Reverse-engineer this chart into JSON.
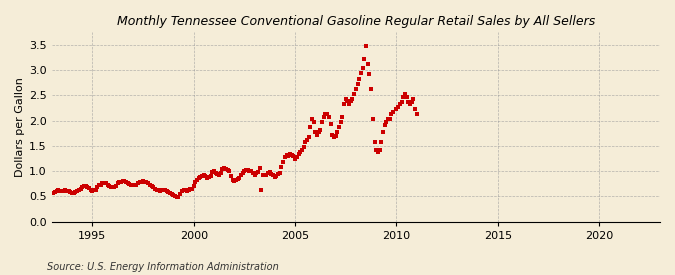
{
  "title": "Monthly Tennessee Conventional Gasoline Regular Retail Sales by All Sellers",
  "ylabel": "Dollars per Gallon",
  "source": "Source: U.S. Energy Information Administration",
  "background_color": "#f5edd8",
  "plot_bg_color": "#f5edd8",
  "marker_color": "#cc0000",
  "marker_size": 5,
  "xlim": [
    1993.0,
    2023.0
  ],
  "ylim": [
    0.0,
    3.75
  ],
  "yticks": [
    0.0,
    0.5,
    1.0,
    1.5,
    2.0,
    2.5,
    3.0,
    3.5
  ],
  "xticks": [
    1995,
    2000,
    2005,
    2010,
    2015,
    2020
  ],
  "data_xy": [
    [
      1993.08,
      0.57
    ],
    [
      1993.17,
      0.59
    ],
    [
      1993.25,
      0.61
    ],
    [
      1993.33,
      0.62
    ],
    [
      1993.42,
      0.61
    ],
    [
      1993.5,
      0.6
    ],
    [
      1993.58,
      0.61
    ],
    [
      1993.67,
      0.62
    ],
    [
      1993.75,
      0.6
    ],
    [
      1993.83,
      0.61
    ],
    [
      1993.92,
      0.59
    ],
    [
      1994.0,
      0.57
    ],
    [
      1994.08,
      0.57
    ],
    [
      1994.17,
      0.58
    ],
    [
      1994.25,
      0.6
    ],
    [
      1994.33,
      0.63
    ],
    [
      1994.42,
      0.64
    ],
    [
      1994.5,
      0.68
    ],
    [
      1994.58,
      0.7
    ],
    [
      1994.67,
      0.7
    ],
    [
      1994.75,
      0.68
    ],
    [
      1994.83,
      0.66
    ],
    [
      1994.92,
      0.63
    ],
    [
      1995.0,
      0.61
    ],
    [
      1995.08,
      0.62
    ],
    [
      1995.17,
      0.63
    ],
    [
      1995.25,
      0.68
    ],
    [
      1995.33,
      0.73
    ],
    [
      1995.42,
      0.73
    ],
    [
      1995.5,
      0.76
    ],
    [
      1995.58,
      0.77
    ],
    [
      1995.67,
      0.76
    ],
    [
      1995.75,
      0.73
    ],
    [
      1995.83,
      0.71
    ],
    [
      1995.92,
      0.69
    ],
    [
      1996.0,
      0.68
    ],
    [
      1996.08,
      0.68
    ],
    [
      1996.17,
      0.7
    ],
    [
      1996.25,
      0.76
    ],
    [
      1996.33,
      0.79
    ],
    [
      1996.42,
      0.79
    ],
    [
      1996.5,
      0.8
    ],
    [
      1996.58,
      0.8
    ],
    [
      1996.67,
      0.78
    ],
    [
      1996.75,
      0.76
    ],
    [
      1996.83,
      0.74
    ],
    [
      1996.92,
      0.73
    ],
    [
      1997.0,
      0.72
    ],
    [
      1997.08,
      0.72
    ],
    [
      1997.17,
      0.73
    ],
    [
      1997.25,
      0.76
    ],
    [
      1997.33,
      0.78
    ],
    [
      1997.42,
      0.79
    ],
    [
      1997.5,
      0.8
    ],
    [
      1997.58,
      0.79
    ],
    [
      1997.67,
      0.78
    ],
    [
      1997.75,
      0.76
    ],
    [
      1997.83,
      0.72
    ],
    [
      1997.92,
      0.7
    ],
    [
      1998.0,
      0.68
    ],
    [
      1998.08,
      0.65
    ],
    [
      1998.17,
      0.63
    ],
    [
      1998.25,
      0.62
    ],
    [
      1998.33,
      0.6
    ],
    [
      1998.42,
      0.62
    ],
    [
      1998.5,
      0.63
    ],
    [
      1998.58,
      0.62
    ],
    [
      1998.67,
      0.6
    ],
    [
      1998.75,
      0.58
    ],
    [
      1998.83,
      0.56
    ],
    [
      1998.92,
      0.55
    ],
    [
      1999.0,
      0.52
    ],
    [
      1999.08,
      0.5
    ],
    [
      1999.17,
      0.49
    ],
    [
      1999.25,
      0.48
    ],
    [
      1999.33,
      0.55
    ],
    [
      1999.42,
      0.6
    ],
    [
      1999.5,
      0.63
    ],
    [
      1999.58,
      0.62
    ],
    [
      1999.67,
      0.6
    ],
    [
      1999.75,
      0.62
    ],
    [
      1999.83,
      0.64
    ],
    [
      1999.92,
      0.65
    ],
    [
      2000.0,
      0.7
    ],
    [
      2000.08,
      0.78
    ],
    [
      2000.17,
      0.82
    ],
    [
      2000.25,
      0.86
    ],
    [
      2000.33,
      0.88
    ],
    [
      2000.42,
      0.9
    ],
    [
      2000.5,
      0.93
    ],
    [
      2000.58,
      0.9
    ],
    [
      2000.67,
      0.87
    ],
    [
      2000.75,
      0.88
    ],
    [
      2000.83,
      0.9
    ],
    [
      2000.92,
      0.98
    ],
    [
      2001.0,
      1.0
    ],
    [
      2001.08,
      0.97
    ],
    [
      2001.17,
      0.94
    ],
    [
      2001.25,
      0.92
    ],
    [
      2001.33,
      0.97
    ],
    [
      2001.42,
      1.04
    ],
    [
      2001.5,
      1.07
    ],
    [
      2001.58,
      1.05
    ],
    [
      2001.67,
      1.02
    ],
    [
      2001.75,
      1.0
    ],
    [
      2001.83,
      0.91
    ],
    [
      2001.92,
      0.83
    ],
    [
      2002.0,
      0.81
    ],
    [
      2002.08,
      0.82
    ],
    [
      2002.17,
      0.84
    ],
    [
      2002.25,
      0.87
    ],
    [
      2002.33,
      0.92
    ],
    [
      2002.42,
      0.97
    ],
    [
      2002.5,
      1.01
    ],
    [
      2002.58,
      1.03
    ],
    [
      2002.67,
      1.02
    ],
    [
      2002.75,
      1.01
    ],
    [
      2002.83,
      1.0
    ],
    [
      2002.92,
      0.96
    ],
    [
      2003.0,
      0.93
    ],
    [
      2003.08,
      0.97
    ],
    [
      2003.17,
      0.99
    ],
    [
      2003.25,
      1.07
    ],
    [
      2003.33,
      0.62
    ],
    [
      2003.42,
      0.92
    ],
    [
      2003.5,
      0.92
    ],
    [
      2003.58,
      0.93
    ],
    [
      2003.67,
      0.96
    ],
    [
      2003.75,
      0.99
    ],
    [
      2003.83,
      0.94
    ],
    [
      2003.92,
      0.92
    ],
    [
      2004.0,
      0.89
    ],
    [
      2004.08,
      0.91
    ],
    [
      2004.17,
      0.94
    ],
    [
      2004.25,
      0.97
    ],
    [
      2004.33,
      1.08
    ],
    [
      2004.42,
      1.18
    ],
    [
      2004.5,
      1.27
    ],
    [
      2004.58,
      1.32
    ],
    [
      2004.67,
      1.3
    ],
    [
      2004.75,
      1.34
    ],
    [
      2004.83,
      1.31
    ],
    [
      2004.92,
      1.29
    ],
    [
      2005.0,
      1.23
    ],
    [
      2005.08,
      1.27
    ],
    [
      2005.17,
      1.33
    ],
    [
      2005.25,
      1.38
    ],
    [
      2005.33,
      1.42
    ],
    [
      2005.42,
      1.47
    ],
    [
      2005.5,
      1.58
    ],
    [
      2005.58,
      1.62
    ],
    [
      2005.67,
      1.67
    ],
    [
      2005.75,
      1.88
    ],
    [
      2005.83,
      2.02
    ],
    [
      2005.92,
      1.97
    ],
    [
      2006.0,
      1.77
    ],
    [
      2006.08,
      1.72
    ],
    [
      2006.17,
      1.77
    ],
    [
      2006.25,
      1.82
    ],
    [
      2006.33,
      1.98
    ],
    [
      2006.42,
      2.07
    ],
    [
      2006.5,
      2.12
    ],
    [
      2006.58,
      2.12
    ],
    [
      2006.67,
      2.07
    ],
    [
      2006.75,
      1.93
    ],
    [
      2006.83,
      1.72
    ],
    [
      2006.92,
      1.67
    ],
    [
      2007.0,
      1.7
    ],
    [
      2007.08,
      1.77
    ],
    [
      2007.17,
      1.88
    ],
    [
      2007.25,
      1.98
    ],
    [
      2007.33,
      2.07
    ],
    [
      2007.42,
      2.32
    ],
    [
      2007.5,
      2.43
    ],
    [
      2007.58,
      2.38
    ],
    [
      2007.67,
      2.33
    ],
    [
      2007.75,
      2.38
    ],
    [
      2007.83,
      2.43
    ],
    [
      2007.92,
      2.52
    ],
    [
      2008.0,
      2.62
    ],
    [
      2008.08,
      2.72
    ],
    [
      2008.17,
      2.82
    ],
    [
      2008.25,
      2.93
    ],
    [
      2008.33,
      3.03
    ],
    [
      2008.42,
      3.22
    ],
    [
      2008.5,
      3.48
    ],
    [
      2008.58,
      3.12
    ],
    [
      2008.67,
      2.92
    ],
    [
      2008.75,
      2.62
    ],
    [
      2008.83,
      2.02
    ],
    [
      2008.92,
      1.57
    ],
    [
      2009.0,
      1.42
    ],
    [
      2009.08,
      1.37
    ],
    [
      2009.17,
      1.42
    ],
    [
      2009.25,
      1.57
    ],
    [
      2009.33,
      1.77
    ],
    [
      2009.42,
      1.92
    ],
    [
      2009.5,
      1.97
    ],
    [
      2009.58,
      2.02
    ],
    [
      2009.67,
      2.02
    ],
    [
      2009.75,
      2.12
    ],
    [
      2009.83,
      2.17
    ],
    [
      2010.0,
      2.22
    ],
    [
      2010.08,
      2.27
    ],
    [
      2010.17,
      2.32
    ],
    [
      2010.25,
      2.37
    ],
    [
      2010.33,
      2.47
    ],
    [
      2010.42,
      2.52
    ],
    [
      2010.5,
      2.47
    ],
    [
      2010.58,
      2.37
    ],
    [
      2010.67,
      2.32
    ],
    [
      2010.75,
      2.37
    ],
    [
      2010.83,
      2.42
    ],
    [
      2010.92,
      2.22
    ],
    [
      2011.0,
      2.12
    ]
  ]
}
